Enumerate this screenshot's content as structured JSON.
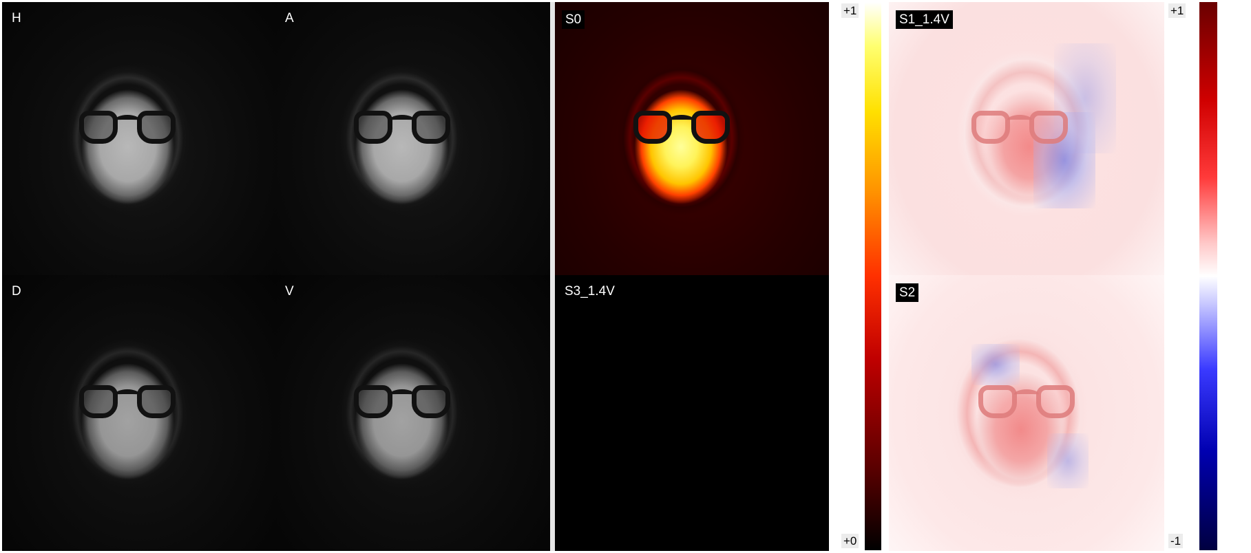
{
  "panels": {
    "h": {
      "label": "H"
    },
    "a": {
      "label": "A"
    },
    "d": {
      "label": "D"
    },
    "v": {
      "label": "V"
    },
    "s0": {
      "label": "S0"
    },
    "s3": {
      "label": "S3_1.4V"
    },
    "s1": {
      "label": "S1_1.4V"
    },
    "s2": {
      "label": "S2"
    }
  },
  "colorbars": {
    "hot": {
      "top": "+1",
      "bottom": "+0"
    },
    "diverging": {
      "top": "+1",
      "bottom": "-1"
    }
  },
  "colors": {
    "background": "#ffffff",
    "panel_background": "#000000"
  }
}
